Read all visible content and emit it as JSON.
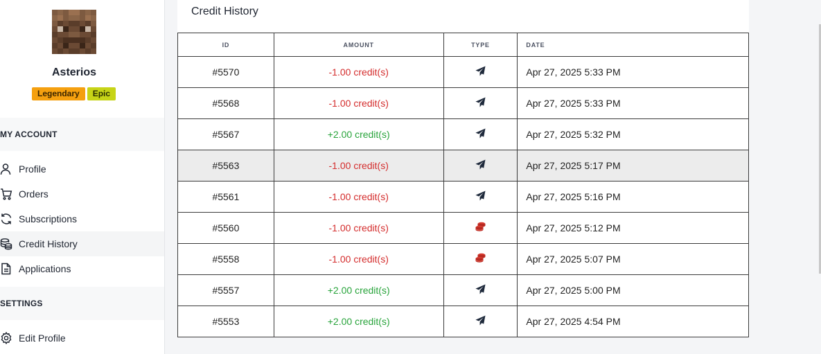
{
  "profile": {
    "username": "Asterios",
    "badges": [
      {
        "label": "Legendary",
        "color": "#f5a00f"
      },
      {
        "label": "Epic",
        "color": "#c7d417"
      }
    ]
  },
  "sidebar": {
    "my_account_heading": "MY ACCOUNT",
    "items": [
      {
        "label": "Profile",
        "icon": "user-icon"
      },
      {
        "label": "Orders",
        "icon": "cart-icon"
      },
      {
        "label": "Subscriptions",
        "icon": "refresh-icon"
      },
      {
        "label": "Credit History",
        "icon": "coins-icon"
      },
      {
        "label": "Applications",
        "icon": "document-icon"
      }
    ],
    "settings_heading": "SETTINGS",
    "settings_items": [
      {
        "label": "Edit Profile",
        "icon": "gear-icon"
      }
    ]
  },
  "credit_history": {
    "title": "Credit History",
    "columns": [
      "ID",
      "AMOUNT",
      "TYPE",
      "DATE"
    ],
    "rows": [
      {
        "id": "#5570",
        "amount": "-1.00 credit(s)",
        "sign": "neg",
        "type": "paper-plane-icon",
        "date": "Apr 27, 2025 5:33 PM"
      },
      {
        "id": "#5568",
        "amount": "-1.00 credit(s)",
        "sign": "neg",
        "type": "paper-plane-icon",
        "date": "Apr 27, 2025 5:33 PM"
      },
      {
        "id": "#5567",
        "amount": "+2.00 credit(s)",
        "sign": "pos",
        "type": "paper-plane-icon",
        "date": "Apr 27, 2025 5:32 PM"
      },
      {
        "id": "#5563",
        "amount": "-1.00 credit(s)",
        "sign": "neg",
        "type": "paper-plane-icon",
        "date": "Apr 27, 2025 5:17 PM"
      },
      {
        "id": "#5561",
        "amount": "-1.00 credit(s)",
        "sign": "neg",
        "type": "paper-plane-icon",
        "date": "Apr 27, 2025 5:16 PM"
      },
      {
        "id": "#5560",
        "amount": "-1.00 credit(s)",
        "sign": "neg",
        "type": "coins-icon",
        "date": "Apr 27, 2025 5:12 PM"
      },
      {
        "id": "#5558",
        "amount": "-1.00 credit(s)",
        "sign": "neg",
        "type": "coins-icon",
        "date": "Apr 27, 2025 5:07 PM"
      },
      {
        "id": "#5557",
        "amount": "+2.00 credit(s)",
        "sign": "pos",
        "type": "paper-plane-icon",
        "date": "Apr 27, 2025 5:00 PM"
      },
      {
        "id": "#5553",
        "amount": "+2.00 credit(s)",
        "sign": "pos",
        "type": "paper-plane-icon",
        "date": "Apr 27, 2025 4:54 PM"
      }
    ],
    "colors": {
      "negative": "#d42d2d",
      "positive": "#27a33a",
      "coins_icon": "#d63a2f",
      "plane_icon": "#1f2a3c"
    }
  }
}
